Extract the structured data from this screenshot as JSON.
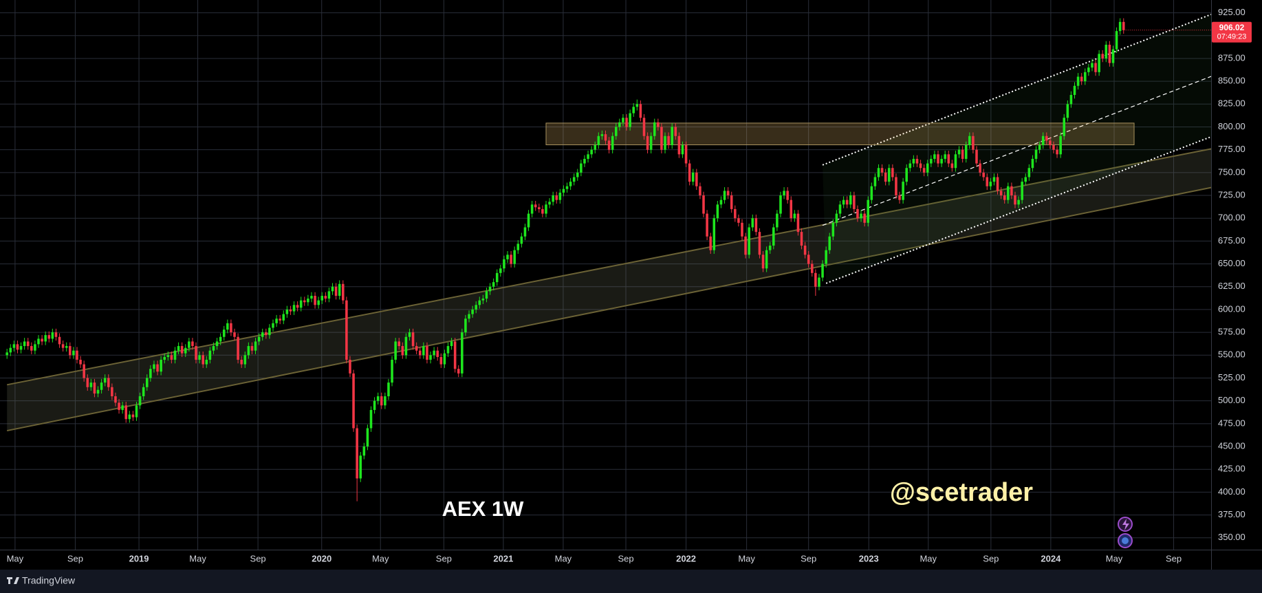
{
  "chart_data": {
    "type": "candlestick",
    "title": "AEX 1W",
    "watermark": "@scetrader",
    "last_price_countdown": "07:49:23",
    "xlim": [
      -2,
      344
    ],
    "ylim": [
      337,
      939
    ],
    "grid": true,
    "up_color": "#1ee61e",
    "down_color": "#f23645",
    "xticks": [
      {
        "value": 2.3,
        "label": "May"
      },
      {
        "value": 19.5,
        "label": "Sep"
      },
      {
        "value": 37.7,
        "label": "2019"
      },
      {
        "value": 54.5,
        "label": "May"
      },
      {
        "value": 71.7,
        "label": "Sep"
      },
      {
        "value": 89.9,
        "label": "2020"
      },
      {
        "value": 106.7,
        "label": "May"
      },
      {
        "value": 124.8,
        "label": "Sep"
      },
      {
        "value": 141.8,
        "label": "2021"
      },
      {
        "value": 158.9,
        "label": "May"
      },
      {
        "value": 176.8,
        "label": "Sep"
      },
      {
        "value": 194,
        "label": "2022"
      },
      {
        "value": 211.3,
        "label": "May"
      },
      {
        "value": 229,
        "label": "Sep"
      },
      {
        "value": 246.2,
        "label": "2023"
      },
      {
        "value": 263.2,
        "label": "May"
      },
      {
        "value": 281.1,
        "label": "Sep"
      },
      {
        "value": 298.2,
        "label": "2024"
      },
      {
        "value": 316.3,
        "label": "May"
      },
      {
        "value": 333.3,
        "label": "Sep"
      }
    ],
    "yticks": [
      {
        "value": 350,
        "label": "350.00"
      },
      {
        "value": 375,
        "label": "375.00"
      },
      {
        "value": 400,
        "label": "400.00"
      },
      {
        "value": 425,
        "label": "425.00"
      },
      {
        "value": 450,
        "label": "450.00"
      },
      {
        "value": 475,
        "label": "475.00"
      },
      {
        "value": 500,
        "label": "500.00"
      },
      {
        "value": 525,
        "label": "525.00"
      },
      {
        "value": 550,
        "label": "550.00"
      },
      {
        "value": 575,
        "label": "575.00"
      },
      {
        "value": 600,
        "label": "600.00"
      },
      {
        "value": 625,
        "label": "625.00"
      },
      {
        "value": 650,
        "label": "650.00"
      },
      {
        "value": 675,
        "label": "675.00"
      },
      {
        "value": 700,
        "label": "700.00"
      },
      {
        "value": 725,
        "label": "725.00"
      },
      {
        "value": 750,
        "label": "750.00"
      },
      {
        "value": 775,
        "label": "775.00"
      },
      {
        "value": 800,
        "label": "800.00"
      },
      {
        "value": 825,
        "label": "825.00"
      },
      {
        "value": 850,
        "label": "850.00"
      },
      {
        "value": 875,
        "label": "875.00"
      },
      {
        "value": 900,
        "label": "900.00"
      },
      {
        "value": 925,
        "label": "925.00"
      }
    ],
    "open": [
      550,
      553,
      558,
      562,
      556,
      560,
      565,
      560,
      555,
      562,
      568,
      565,
      572,
      568,
      575,
      570,
      562,
      558,
      560,
      550,
      555,
      545,
      540,
      525,
      515,
      520,
      508,
      512,
      520,
      525,
      515,
      505,
      498,
      490,
      495,
      480,
      485,
      482,
      495,
      505,
      515,
      525,
      535,
      540,
      532,
      545,
      548,
      550,
      545,
      555,
      560,
      552,
      558,
      565,
      560,
      545,
      550,
      540,
      545,
      555,
      560,
      565,
      570,
      578,
      585,
      575,
      570,
      545,
      540,
      550,
      560,
      555,
      565,
      570,
      575,
      572,
      580,
      585,
      590,
      588,
      595,
      600,
      598,
      605,
      602,
      610,
      608,
      612,
      615,
      605,
      610,
      615,
      612,
      620,
      625,
      615,
      628,
      610,
      545,
      530,
      470,
      415,
      440,
      450,
      470,
      490,
      500,
      505,
      495,
      505,
      520,
      545,
      565,
      560,
      550,
      570,
      575,
      560,
      555,
      550,
      560,
      545,
      550,
      555,
      548,
      540,
      552,
      560,
      565,
      535,
      530,
      575,
      590,
      595,
      600,
      605,
      610,
      612,
      620,
      625,
      630,
      640,
      645,
      655,
      660,
      650,
      665,
      672,
      680,
      690,
      705,
      715,
      712,
      710,
      705,
      715,
      718,
      725,
      720,
      728,
      732,
      735,
      740,
      745,
      750,
      760,
      765,
      770,
      775,
      780,
      790,
      792,
      785,
      775,
      790,
      800,
      805,
      810,
      800,
      815,
      822,
      825,
      810,
      790,
      775,
      790,
      805,
      800,
      775,
      790,
      780,
      800,
      790,
      770,
      780,
      760,
      740,
      750,
      735,
      725,
      705,
      680,
      665,
      700,
      715,
      720,
      730,
      725,
      710,
      700,
      695,
      680,
      660,
      690,
      700,
      685,
      660,
      645,
      665,
      670,
      690,
      705,
      725,
      730,
      720,
      700,
      705,
      685,
      670,
      660,
      650,
      640,
      625,
      635,
      650,
      665,
      680,
      695,
      705,
      715,
      720,
      715,
      725,
      710,
      700,
      705,
      695,
      720,
      735,
      745,
      755,
      750,
      740,
      755,
      745,
      725,
      720,
      740,
      755,
      760,
      765,
      760,
      755,
      750,
      760,
      765,
      770,
      760,
      765,
      770,
      760,
      755,
      770,
      775,
      765,
      780,
      790,
      775,
      760,
      750,
      745,
      735,
      740,
      745,
      730,
      725,
      720,
      735,
      725,
      715,
      720,
      740,
      745,
      755,
      765,
      775,
      780,
      790,
      785,
      780,
      775,
      770,
      790,
      810,
      825,
      835,
      845,
      855,
      850,
      860,
      865,
      870,
      860,
      880,
      875,
      890,
      870,
      885,
      905,
      915
    ],
    "high": [
      557,
      562,
      566,
      566,
      564,
      569,
      569,
      564,
      566,
      572,
      572,
      576,
      576,
      579,
      579,
      574,
      566,
      564,
      564,
      559,
      559,
      549,
      544,
      529,
      524,
      524,
      516,
      524,
      529,
      529,
      519,
      509,
      502,
      499,
      499,
      489,
      489,
      499,
      509,
      519,
      529,
      539,
      544,
      544,
      549,
      552,
      554,
      554,
      559,
      564,
      564,
      562,
      569,
      569,
      564,
      554,
      554,
      549,
      559,
      564,
      569,
      574,
      582,
      589,
      589,
      579,
      574,
      549,
      554,
      564,
      564,
      569,
      574,
      579,
      579,
      584,
      589,
      594,
      594,
      599,
      604,
      604,
      609,
      609,
      614,
      614,
      616,
      619,
      619,
      614,
      619,
      619,
      624,
      629,
      629,
      632,
      632,
      614,
      549,
      534,
      474,
      444,
      454,
      474,
      494,
      504,
      509,
      509,
      509,
      524,
      549,
      569,
      569,
      564,
      574,
      579,
      579,
      564,
      559,
      564,
      564,
      554,
      559,
      559,
      552,
      556,
      564,
      569,
      569,
      539,
      579,
      594,
      599,
      604,
      609,
      614,
      616,
      624,
      629,
      634,
      644,
      649,
      659,
      664,
      664,
      669,
      676,
      684,
      694,
      709,
      719,
      719,
      716,
      714,
      719,
      722,
      729,
      729,
      732,
      736,
      739,
      744,
      749,
      754,
      764,
      769,
      774,
      779,
      784,
      794,
      796,
      796,
      789,
      794,
      804,
      809,
      814,
      814,
      819,
      826,
      830,
      829,
      814,
      794,
      794,
      809,
      809,
      804,
      794,
      794,
      804,
      804,
      794,
      784,
      784,
      764,
      754,
      754,
      739,
      729,
      709,
      684,
      704,
      719,
      724,
      734,
      734,
      729,
      714,
      704,
      699,
      684,
      694,
      704,
      704,
      689,
      664,
      669,
      674,
      694,
      709,
      729,
      734,
      734,
      724,
      709,
      709,
      689,
      674,
      664,
      654,
      644,
      639,
      654,
      669,
      684,
      699,
      709,
      719,
      724,
      724,
      729,
      729,
      714,
      709,
      709,
      724,
      739,
      749,
      759,
      759,
      754,
      759,
      759,
      749,
      729,
      744,
      759,
      764,
      769,
      769,
      764,
      759,
      764,
      769,
      774,
      774,
      769,
      774,
      774,
      764,
      774,
      779,
      779,
      784,
      794,
      794,
      779,
      764,
      754,
      749,
      744,
      749,
      749,
      734,
      729,
      739,
      739,
      729,
      724,
      744,
      749,
      759,
      769,
      779,
      784,
      794,
      794,
      789,
      784,
      779,
      794,
      814,
      829,
      839,
      849,
      859,
      859,
      864,
      869,
      874,
      874,
      884,
      884,
      894,
      894,
      889,
      909,
      919,
      919
    ],
    "low": [
      546,
      549,
      554,
      552,
      552,
      556,
      556,
      551,
      551,
      558,
      561,
      561,
      564,
      564,
      566,
      558,
      554,
      554,
      546,
      546,
      541,
      536,
      521,
      511,
      511,
      504,
      504,
      508,
      516,
      511,
      501,
      494,
      486,
      486,
      476,
      476,
      478,
      478,
      491,
      501,
      511,
      521,
      531,
      528,
      528,
      541,
      544,
      541,
      541,
      551,
      548,
      548,
      554,
      556,
      541,
      541,
      536,
      536,
      541,
      551,
      556,
      561,
      566,
      574,
      571,
      566,
      541,
      536,
      536,
      546,
      551,
      551,
      561,
      566,
      568,
      568,
      576,
      581,
      584,
      584,
      591,
      594,
      594,
      598,
      598,
      604,
      604,
      608,
      601,
      601,
      606,
      608,
      608,
      616,
      611,
      611,
      606,
      541,
      526,
      466,
      390,
      411,
      436,
      446,
      466,
      486,
      496,
      491,
      491,
      501,
      516,
      541,
      556,
      546,
      546,
      566,
      556,
      551,
      546,
      546,
      541,
      541,
      546,
      544,
      536,
      536,
      548,
      556,
      531,
      526,
      526,
      571,
      586,
      591,
      596,
      601,
      606,
      608,
      616,
      621,
      626,
      636,
      641,
      651,
      646,
      646,
      661,
      668,
      676,
      686,
      701,
      708,
      706,
      701,
      701,
      711,
      714,
      716,
      716,
      724,
      728,
      731,
      736,
      741,
      746,
      756,
      761,
      766,
      771,
      776,
      786,
      781,
      771,
      771,
      786,
      796,
      801,
      796,
      796,
      811,
      818,
      806,
      786,
      771,
      771,
      786,
      796,
      771,
      771,
      776,
      776,
      786,
      766,
      766,
      756,
      736,
      736,
      731,
      721,
      701,
      676,
      661,
      661,
      696,
      711,
      716,
      721,
      706,
      696,
      691,
      676,
      656,
      656,
      686,
      681,
      656,
      641,
      641,
      661,
      666,
      686,
      701,
      721,
      716,
      696,
      696,
      681,
      666,
      656,
      646,
      636,
      615,
      621,
      631,
      646,
      661,
      676,
      691,
      701,
      711,
      711,
      711,
      706,
      696,
      696,
      691,
      691,
      716,
      731,
      741,
      746,
      736,
      736,
      741,
      721,
      716,
      716,
      736,
      751,
      756,
      756,
      751,
      746,
      746,
      756,
      761,
      756,
      756,
      761,
      756,
      751,
      751,
      766,
      761,
      761,
      776,
      771,
      756,
      746,
      741,
      731,
      731,
      736,
      726,
      721,
      716,
      716,
      721,
      711,
      711,
      716,
      736,
      741,
      751,
      761,
      771,
      776,
      781,
      776,
      771,
      766,
      766,
      786,
      806,
      821,
      831,
      841,
      846,
      846,
      856,
      861,
      856,
      856,
      871,
      871,
      866,
      866,
      881,
      901,
      902
    ],
    "close": [
      553,
      558,
      562,
      556,
      560,
      565,
      560,
      555,
      562,
      568,
      565,
      572,
      568,
      575,
      570,
      562,
      558,
      560,
      550,
      555,
      545,
      540,
      525,
      515,
      520,
      508,
      512,
      520,
      525,
      515,
      505,
      498,
      490,
      495,
      480,
      485,
      482,
      495,
      505,
      515,
      525,
      535,
      540,
      532,
      545,
      548,
      550,
      545,
      555,
      560,
      552,
      558,
      565,
      560,
      545,
      550,
      540,
      545,
      555,
      560,
      565,
      570,
      578,
      585,
      575,
      570,
      545,
      540,
      550,
      560,
      555,
      565,
      570,
      575,
      572,
      580,
      585,
      590,
      588,
      595,
      600,
      598,
      605,
      602,
      610,
      608,
      612,
      615,
      605,
      610,
      615,
      612,
      620,
      625,
      615,
      628,
      610,
      545,
      530,
      470,
      415,
      440,
      450,
      470,
      490,
      500,
      505,
      495,
      505,
      520,
      545,
      565,
      560,
      550,
      570,
      575,
      560,
      555,
      550,
      560,
      545,
      550,
      555,
      548,
      540,
      552,
      560,
      565,
      535,
      530,
      575,
      590,
      595,
      600,
      605,
      610,
      612,
      620,
      625,
      630,
      640,
      645,
      655,
      660,
      650,
      665,
      672,
      680,
      690,
      705,
      715,
      712,
      710,
      705,
      715,
      718,
      725,
      720,
      728,
      732,
      735,
      740,
      745,
      750,
      760,
      765,
      770,
      775,
      780,
      790,
      792,
      785,
      775,
      790,
      800,
      805,
      810,
      800,
      815,
      822,
      825,
      810,
      790,
      775,
      790,
      805,
      800,
      775,
      790,
      780,
      800,
      790,
      770,
      780,
      760,
      740,
      750,
      735,
      725,
      705,
      680,
      665,
      700,
      715,
      720,
      730,
      725,
      710,
      700,
      695,
      680,
      660,
      690,
      700,
      685,
      660,
      645,
      665,
      670,
      690,
      705,
      725,
      730,
      720,
      700,
      705,
      685,
      670,
      660,
      650,
      640,
      625,
      635,
      650,
      665,
      680,
      695,
      705,
      715,
      720,
      715,
      725,
      710,
      700,
      705,
      695,
      720,
      735,
      745,
      755,
      750,
      740,
      755,
      745,
      725,
      720,
      740,
      755,
      760,
      765,
      760,
      755,
      750,
      760,
      765,
      770,
      760,
      765,
      770,
      760,
      755,
      770,
      775,
      765,
      780,
      790,
      775,
      760,
      750,
      745,
      735,
      740,
      745,
      730,
      725,
      720,
      735,
      725,
      715,
      720,
      740,
      745,
      755,
      765,
      775,
      780,
      790,
      785,
      780,
      775,
      770,
      790,
      810,
      825,
      835,
      845,
      855,
      850,
      860,
      865,
      870,
      860,
      880,
      875,
      890,
      870,
      885,
      905,
      915,
      906.02
    ],
    "zones": [
      {
        "x": [
          154,
          322
        ],
        "y": [
          780.4,
          804.2
        ],
        "fill": "rgba(255,205,120,0.22)",
        "stroke": "#a8925e"
      }
    ],
    "bands": [
      {
        "upper": [
          [
            0,
            517.6
          ],
          [
            344,
            776
          ]
        ],
        "lower": [
          [
            0,
            467.3
          ],
          [
            344,
            733.6
          ]
        ],
        "fill": "rgba(120,125,95,0.22)",
        "stroke": "#6b6235",
        "dash": "none"
      },
      {
        "upper": [
          [
            233,
            758.3
          ],
          [
            344,
            923.2
          ]
        ],
        "lower": [
          [
            234,
            628.7
          ],
          [
            344,
            789.2
          ]
        ],
        "fill": "rgba(40,90,40,0.12)",
        "stroke": "#ffffff",
        "dash": "2 3"
      }
    ],
    "trendlines": [
      {
        "from": [
          233,
          692.2
        ],
        "to": [
          344,
          855.3
        ],
        "stroke": "#ffffff",
        "dash": "6 4"
      }
    ]
  },
  "footer": {
    "brand": "TradingView"
  }
}
